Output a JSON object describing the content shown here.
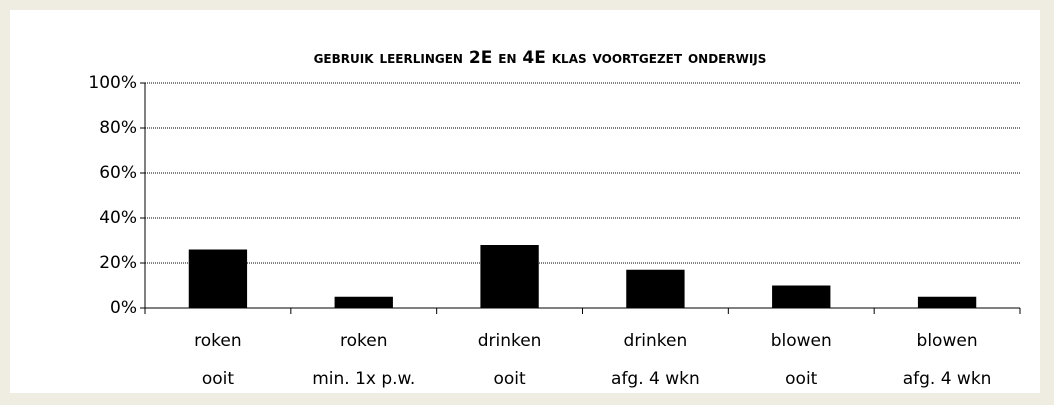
{
  "chart_data": {
    "type": "bar",
    "title": "gebruik leerlingen 2E en 4E klas voortgezet onderwijs",
    "categories": [
      [
        "roken",
        "ooit"
      ],
      [
        "roken",
        "min. 1x p.w."
      ],
      [
        "drinken",
        "ooit"
      ],
      [
        "drinken",
        "afg. 4 wkn"
      ],
      [
        "blowen",
        "ooit"
      ],
      [
        "blowen",
        "afg. 4 wkn"
      ]
    ],
    "values": [
      26,
      5,
      28,
      17,
      10,
      5
    ],
    "color": "#000000",
    "ylim": [
      0,
      100
    ],
    "yticks": [
      {
        "value": 0,
        "label": "0%"
      },
      {
        "value": 20,
        "label": "20%"
      },
      {
        "value": 40,
        "label": "40%"
      },
      {
        "value": 60,
        "label": "60%"
      },
      {
        "value": 80,
        "label": "80%"
      },
      {
        "value": 100,
        "label": "100%"
      }
    ],
    "grid": true
  }
}
